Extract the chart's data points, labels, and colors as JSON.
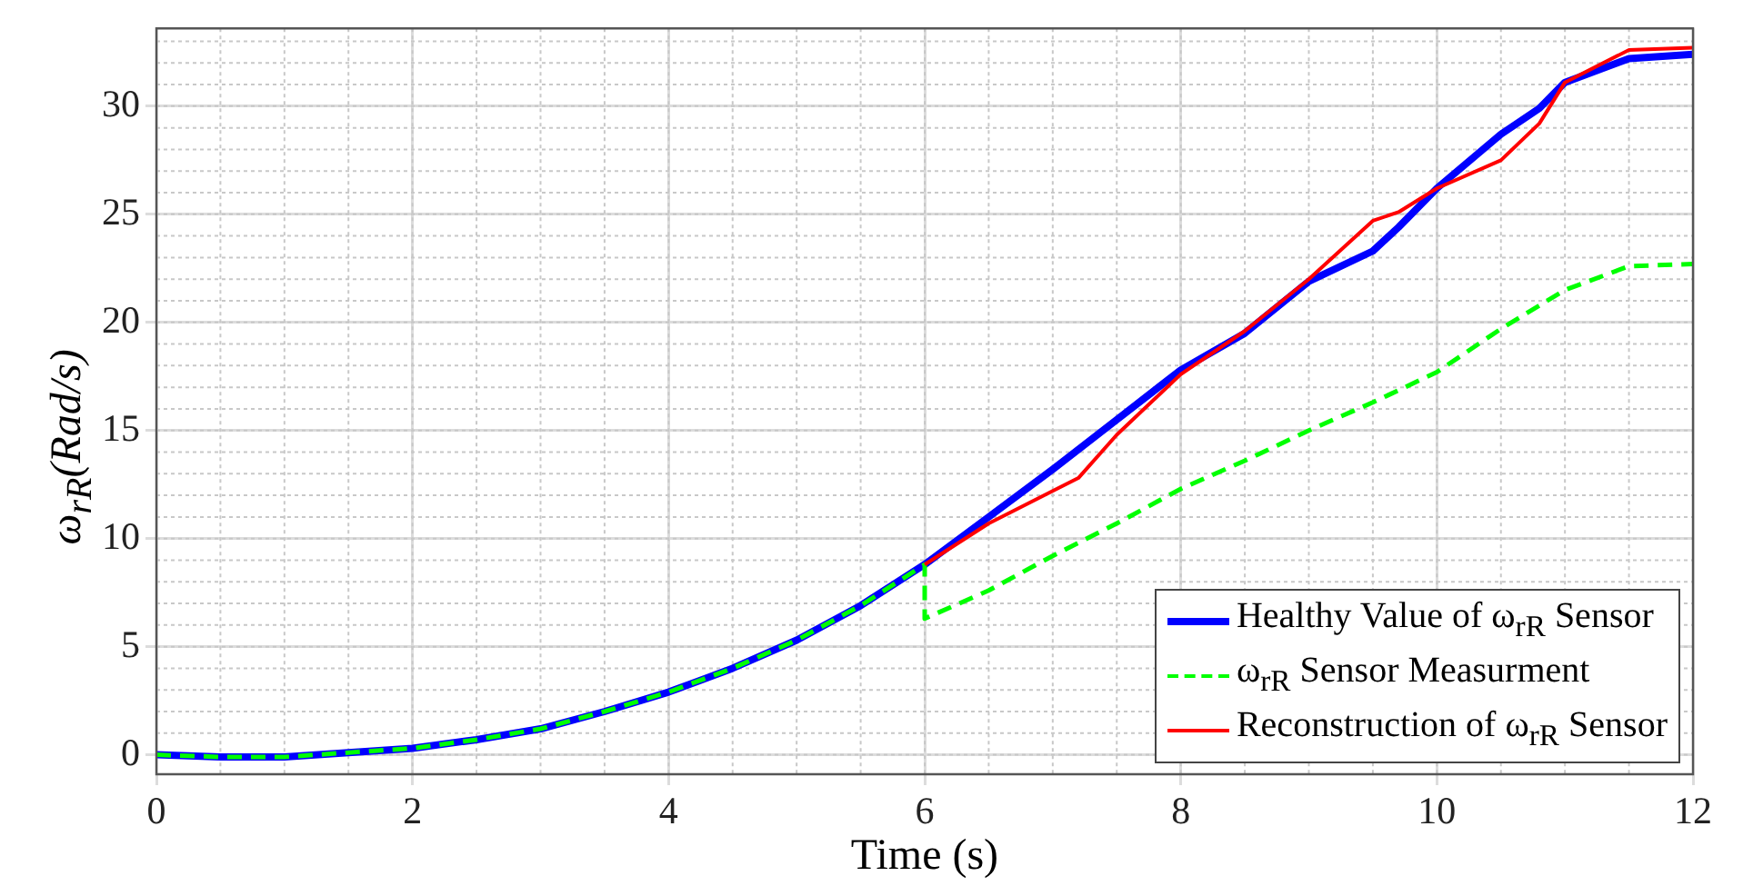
{
  "chart_data": {
    "type": "line",
    "xlabel": "Time (s)",
    "ylabel": "ω$_{rR}$(Rad/s)",
    "xlim": [
      0,
      12
    ],
    "xticks": [
      0,
      2,
      4,
      6,
      8,
      10,
      12
    ],
    "ylim": [
      -0.9,
      33.6
    ],
    "yticks": [
      0,
      5,
      10,
      15,
      20,
      25,
      30
    ],
    "grid": true,
    "legend": "bottom right",
    "marker": "none",
    "series": [
      {
        "name": "Healthy Value of ω$_{rR}$ Sensor",
        "color": "#0000ff",
        "line_style": "solid",
        "x": [
          0,
          0.5,
          1,
          1.5,
          2,
          2.5,
          3,
          3.5,
          4,
          4.5,
          5,
          5.5,
          6,
          6.5,
          7,
          7.5,
          8,
          8.5,
          9,
          9.5,
          9.7,
          10,
          10.5,
          10.8,
          11,
          11.5,
          12
        ],
        "values": [
          0,
          -0.1,
          -0.1,
          0.1,
          0.3,
          0.7,
          1.2,
          2.0,
          2.9,
          4.0,
          5.3,
          6.9,
          8.8,
          11.0,
          13.2,
          15.5,
          17.8,
          19.5,
          21.9,
          23.3,
          24.4,
          26.2,
          28.7,
          29.9,
          31.1,
          32.2,
          32.4
        ]
      },
      {
        "name": "ω$_{rR}$ Sensor Measurment",
        "color": "#00ff00",
        "line_style": "dashed",
        "x": [
          0,
          0.5,
          1,
          1.5,
          2,
          2.5,
          3,
          3.5,
          4,
          4.5,
          5,
          5.5,
          6,
          6,
          6.5,
          7,
          7.5,
          8,
          8.5,
          9,
          9.5,
          10,
          10.5,
          11,
          11.5,
          12
        ],
        "values": [
          0,
          -0.1,
          -0.1,
          0.1,
          0.3,
          0.7,
          1.2,
          2.0,
          2.9,
          4.0,
          5.3,
          6.9,
          8.8,
          6.3,
          7.6,
          9.2,
          10.7,
          12.3,
          13.6,
          15.0,
          16.3,
          17.7,
          19.7,
          21.5,
          22.6,
          22.7
        ]
      },
      {
        "name": "Reconstruction of ω$_{rR}$ Sensor",
        "color": "#ff0000",
        "line_style": "solid",
        "x": [
          6,
          6.5,
          7,
          7.2,
          7.5,
          8,
          8.5,
          9,
          9.5,
          9.7,
          10,
          10.5,
          10.8,
          11,
          11.5,
          12
        ],
        "values": [
          8.8,
          10.7,
          12.2,
          12.8,
          14.8,
          17.6,
          19.6,
          22.0,
          24.7,
          25.1,
          26.2,
          27.5,
          29.2,
          31.1,
          32.6,
          32.7
        ]
      }
    ]
  }
}
